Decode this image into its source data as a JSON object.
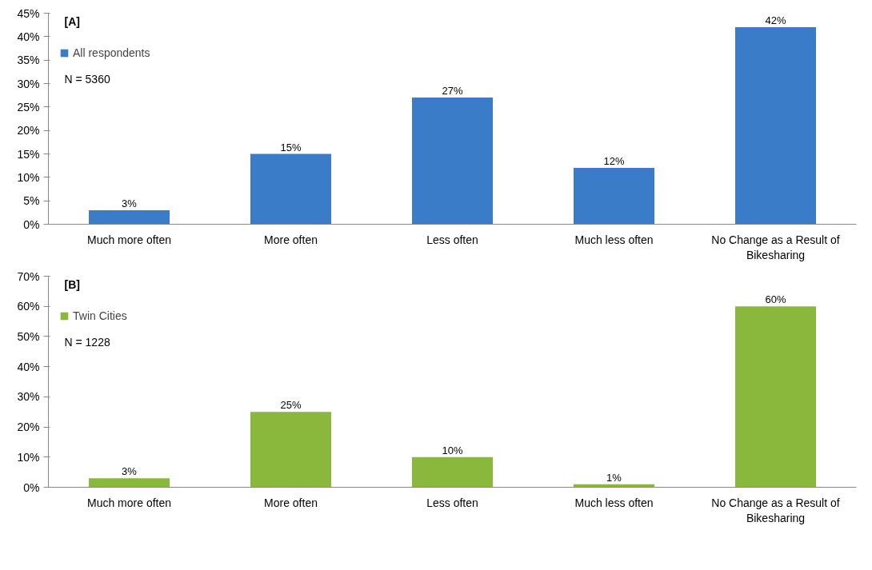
{
  "chart_data": [
    {
      "type": "bar",
      "categories": [
        "Much more often",
        "More often",
        "Less often",
        "Much less often",
        "No Change as a Result of Bikesharing"
      ],
      "series": [
        {
          "name": "All respondents",
          "color": "#3a7cc8",
          "values": [
            3,
            15,
            27,
            12,
            42
          ],
          "value_labels": [
            "3%",
            "15%",
            "27%",
            "12%",
            "42%"
          ]
        }
      ],
      "ylim": [
        0,
        45
      ],
      "yticks": [
        {
          "value": 0,
          "label": "0%"
        },
        {
          "value": 5,
          "label": "5%"
        },
        {
          "value": 10,
          "label": "10%"
        },
        {
          "value": 15,
          "label": "15%"
        },
        {
          "value": 20,
          "label": "20%"
        },
        {
          "value": 25,
          "label": "25%"
        },
        {
          "value": 30,
          "label": "30%"
        },
        {
          "value": 35,
          "label": "35%"
        },
        {
          "value": 40,
          "label": "40%"
        },
        {
          "value": 45,
          "label": "45%"
        }
      ],
      "annotations": [
        "[A]",
        "N = 5360"
      ],
      "legend": "top left",
      "grid": false
    },
    {
      "type": "bar",
      "categories": [
        "Much more often",
        "More often",
        "Less often",
        "Much less often",
        "No Change as a Result of Bikesharing"
      ],
      "series": [
        {
          "name": "Twin Cities",
          "color": "#8ab83c",
          "values": [
            3,
            25,
            10,
            1,
            60
          ],
          "value_labels": [
            "3%",
            "25%",
            "10%",
            "1%",
            "60%"
          ]
        }
      ],
      "ylim": [
        0,
        70
      ],
      "yticks": [
        {
          "value": 0,
          "label": "0%"
        },
        {
          "value": 10,
          "label": "10%"
        },
        {
          "value": 20,
          "label": "20%"
        },
        {
          "value": 30,
          "label": "30%"
        },
        {
          "value": 40,
          "label": "40%"
        },
        {
          "value": 50,
          "label": "50%"
        },
        {
          "value": 60,
          "label": "60%"
        },
        {
          "value": 70,
          "label": "70%"
        }
      ],
      "annotations": [
        "[B]",
        "N = 1228"
      ],
      "legend": "top left",
      "grid": false
    }
  ]
}
